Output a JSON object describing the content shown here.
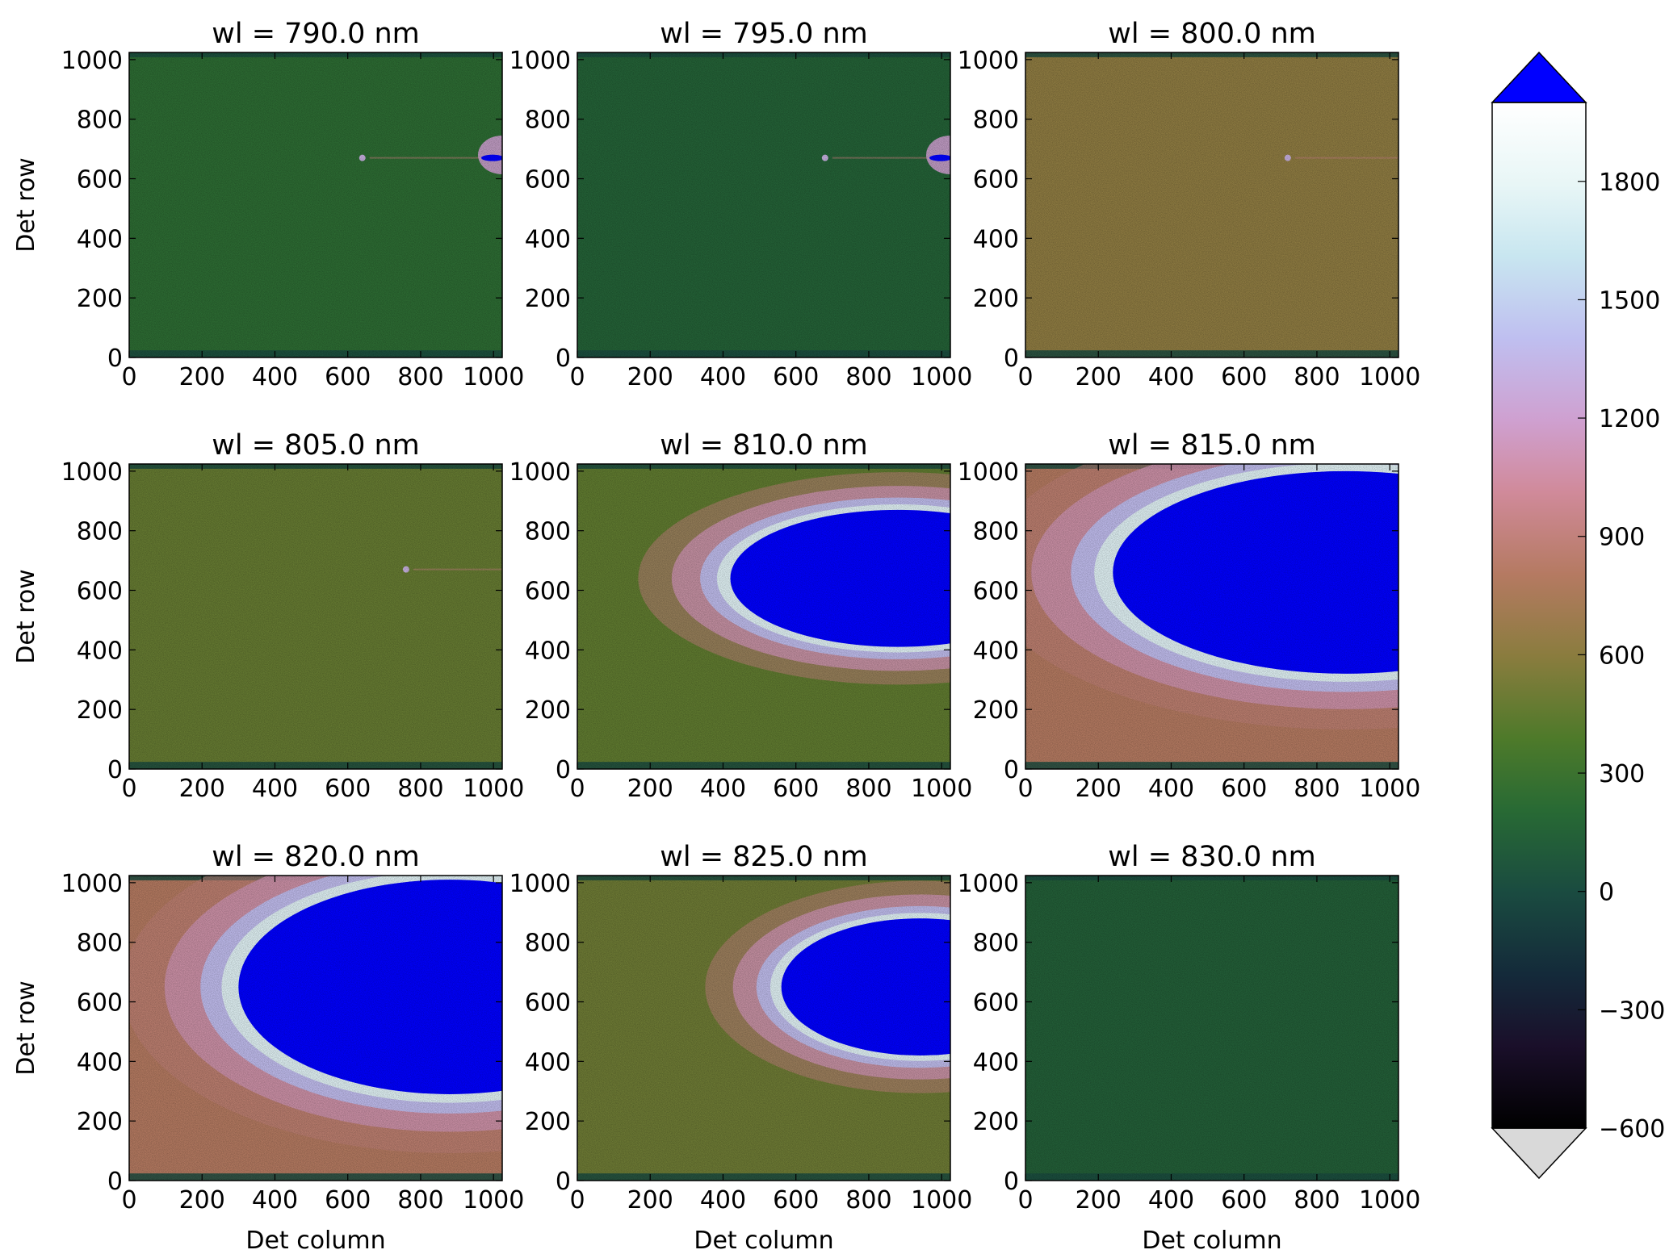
{
  "chart_data": {
    "type": "heatmap",
    "layout": "3x3 grid of detector images",
    "xlabel": "Det column",
    "ylabel": "Det row",
    "xlim": [
      0,
      1024
    ],
    "ylim": [
      0,
      1024
    ],
    "x_ticks": [
      "0",
      "200",
      "400",
      "600",
      "800",
      "1000"
    ],
    "y_ticks": [
      "0",
      "200",
      "400",
      "600",
      "800",
      "1000"
    ],
    "panels": [
      {
        "title": "wl = 790.0 nm",
        "background_level": 230,
        "spot": {
          "col": 640,
          "row": 670
        },
        "saturated_ellipse": null,
        "edge_flare": true
      },
      {
        "title": "wl = 795.0 nm",
        "background_level": 150,
        "spot": {
          "col": 680,
          "row": 670
        },
        "saturated_ellipse": null,
        "edge_flare": true
      },
      {
        "title": "wl = 800.0 nm",
        "background_level": 620,
        "spot": {
          "col": 720,
          "row": 670
        },
        "saturated_ellipse": null,
        "edge_flare": false
      },
      {
        "title": "wl = 805.0 nm",
        "background_level": 470,
        "spot": {
          "col": 760,
          "row": 670
        },
        "saturated_ellipse": null,
        "edge_flare": false
      },
      {
        "title": "wl = 810.0 nm",
        "background_level": 450,
        "spot": null,
        "saturated_ellipse": {
          "col_center": 880,
          "row_center": 640,
          "col_radius": 460,
          "row_radius": 230
        },
        "edge_flare": false
      },
      {
        "title": "wl = 815.0 nm",
        "background_level": 800,
        "spot": null,
        "saturated_ellipse": {
          "col_center": 880,
          "row_center": 660,
          "col_radius": 640,
          "row_radius": 340
        },
        "edge_flare": false
      },
      {
        "title": "wl = 820.0 nm",
        "background_level": 800,
        "spot": null,
        "saturated_ellipse": {
          "col_center": 880,
          "row_center": 650,
          "col_radius": 580,
          "row_radius": 360
        },
        "edge_flare": false
      },
      {
        "title": "wl = 825.0 nm",
        "background_level": 500,
        "spot": null,
        "saturated_ellipse": {
          "col_center": 940,
          "row_center": 650,
          "col_radius": 380,
          "row_radius": 230
        },
        "edge_flare": false
      },
      {
        "title": "wl = 830.0 nm",
        "background_level": 130,
        "spot": null,
        "saturated_ellipse": null,
        "edge_flare": false
      }
    ],
    "colorbar": {
      "vmin": -600,
      "vmax": 2000,
      "ticks": [
        "1800",
        "1500",
        "1200",
        "900",
        "600",
        "300",
        "0",
        "−300",
        "−600"
      ],
      "tick_values": [
        1800,
        1500,
        1200,
        900,
        600,
        300,
        0,
        -300,
        -600
      ],
      "extend": "both",
      "over_color": "#0000ff",
      "under_color": "#d9d9d9",
      "colormap": "cubehelix"
    }
  }
}
